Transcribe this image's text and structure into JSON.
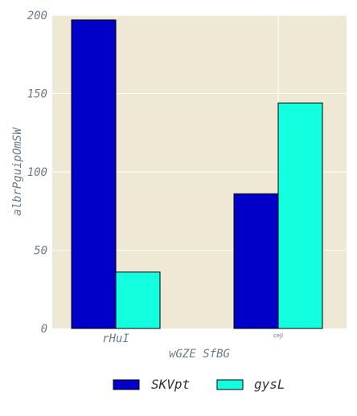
{
  "chart_data": {
    "type": "bar",
    "categories": [
      "rHuI",
      "ceJl"
    ],
    "series": [
      {
        "name": "SKVpt",
        "values": [
          197,
          86
        ],
        "color": "#0000c8"
      },
      {
        "name": "gysL",
        "values": [
          36,
          144
        ],
        "color": "#12ffe0"
      }
    ],
    "xlabel": "wGZE SfBG",
    "ylabel": "albrPguipOmSW",
    "ylim": [
      0,
      200
    ],
    "yticks": [
      0,
      50,
      100,
      150,
      200
    ],
    "grid": true,
    "legend_position": "bottom-center",
    "background_color": "#efe8d5"
  }
}
